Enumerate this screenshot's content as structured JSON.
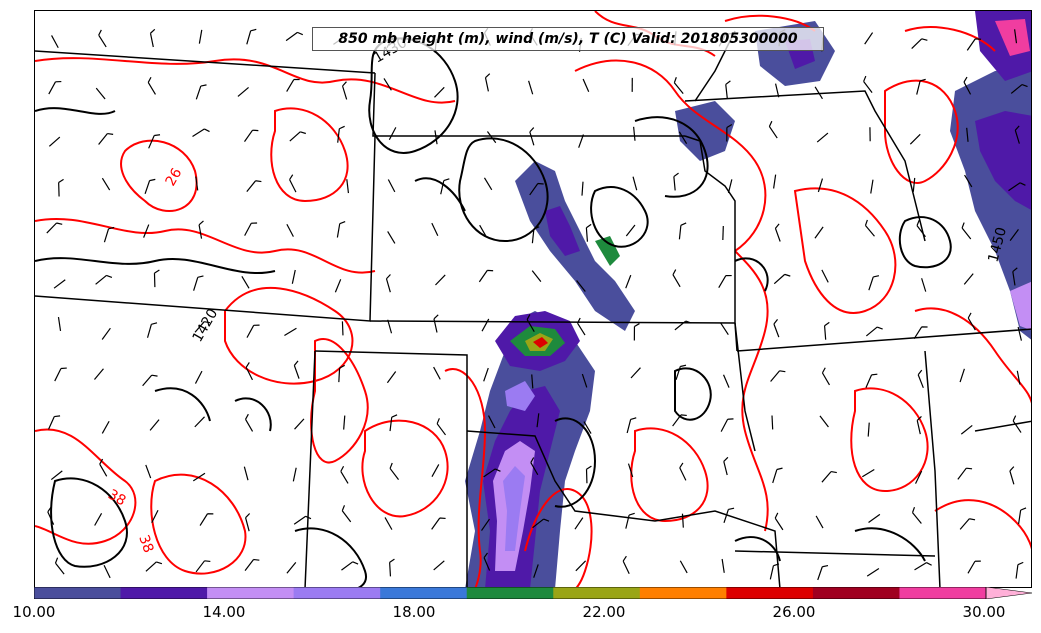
{
  "title": "850 mb height (m), wind (m/s), T (C) Valid: 201805300000",
  "contour_labels": {
    "height": [
      "1430",
      "1420",
      "1450"
    ],
    "temperature": [
      "26",
      "38",
      "38"
    ]
  },
  "colorbar": {
    "levels": [
      10,
      12,
      14,
      16,
      18,
      20,
      22,
      24,
      26,
      28,
      30
    ],
    "tick_labels": [
      "10.00",
      "14.00",
      "18.00",
      "22.00",
      "26.00",
      "30.00"
    ],
    "colors": [
      "#4a4e9c",
      "#4f19a8",
      "#c38ef4",
      "#9b7bf2",
      "#3a78d9",
      "#1e8a3d",
      "#9aa516",
      "#ff7f00",
      "#dd0000",
      "#a00020",
      "#f03da0",
      "#ffb0d8"
    ],
    "extend": "max"
  },
  "line_colors": {
    "height_contours": "#000000",
    "temperature_contours": "#ff0000",
    "state_borders": "#000000"
  },
  "icons": [
    "wind-barb-icon"
  ]
}
